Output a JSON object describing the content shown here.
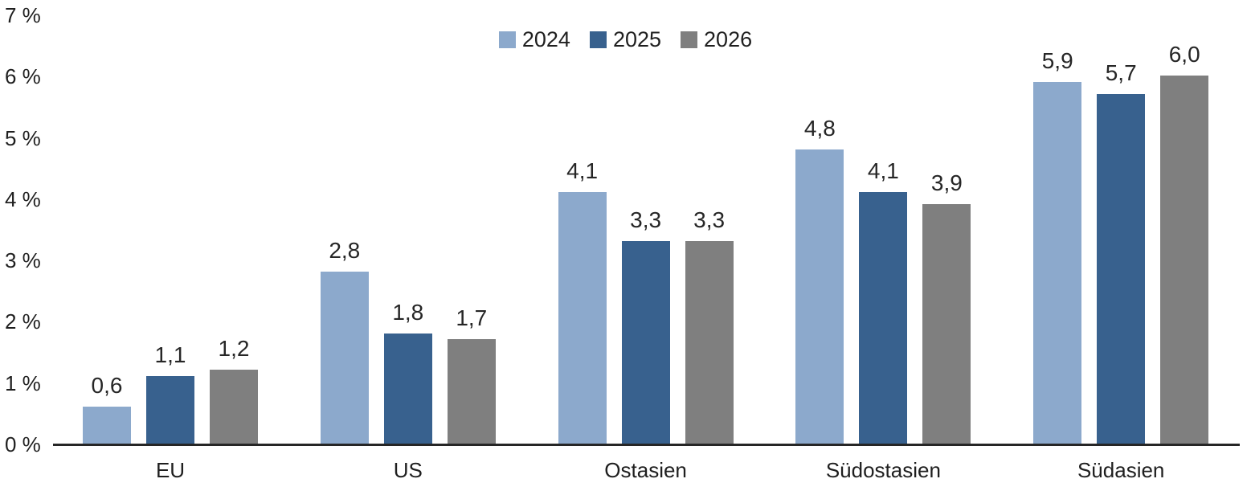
{
  "chart_data": {
    "type": "bar",
    "title": "",
    "categories": [
      "EU",
      "US",
      "Ostasien",
      "Südostasien",
      "Südasien"
    ],
    "series": [
      {
        "name": "2024",
        "color": "#8CA9CC",
        "values": [
          0.6,
          2.8,
          4.1,
          4.8,
          5.9
        ],
        "labels": [
          "0,6",
          "2,8",
          "4,1",
          "4,8",
          "5,9"
        ]
      },
      {
        "name": "2025",
        "color": "#38618E",
        "values": [
          1.1,
          1.8,
          3.3,
          4.1,
          5.7
        ],
        "labels": [
          "1,1",
          "1,8",
          "3,3",
          "4,1",
          "5,7"
        ]
      },
      {
        "name": "2026",
        "color": "#7F7F7F",
        "values": [
          1.2,
          1.7,
          3.3,
          3.9,
          6.0
        ],
        "labels": [
          "1,2",
          "1,7",
          "3,3",
          "3,9",
          "6,0"
        ]
      }
    ],
    "y_ticks": [
      "0 %",
      "1 %",
      "2 %",
      "3 %",
      "4 %",
      "5 %",
      "6 %",
      "7 %"
    ],
    "ylim": [
      0,
      7
    ],
    "xlabel": "",
    "ylabel": "",
    "grid": false,
    "legend_position": "top-center",
    "axis_line_color": "#262626",
    "value_label_color": "#262626"
  }
}
